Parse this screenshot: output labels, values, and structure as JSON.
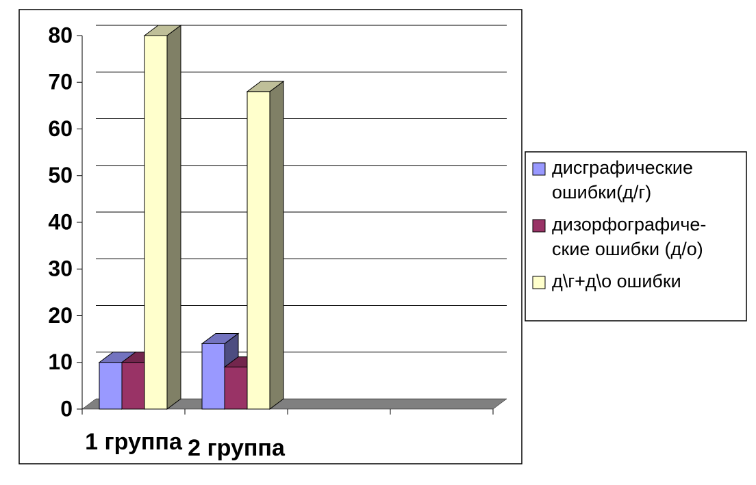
{
  "chart_data": {
    "type": "bar",
    "three_d": true,
    "categories": [
      "1 группа",
      "2 группа",
      null,
      null
    ],
    "series": [
      {
        "name": "дисграфические ошибки(д/г)",
        "color": "#9999ff",
        "values": [
          10,
          14,
          null,
          null
        ]
      },
      {
        "name": "дизорфографиче-ские ошибки (д/о)",
        "color": "#993366",
        "values": [
          10,
          9,
          null,
          null
        ]
      },
      {
        "name": "д\\г+д\\о ошибки",
        "color": "#ffffcc",
        "values": [
          80,
          68,
          null,
          null
        ]
      }
    ],
    "ylim": [
      0,
      80
    ],
    "yticks": [
      0,
      10,
      20,
      30,
      40,
      50,
      60,
      70,
      80
    ],
    "grid": true,
    "legend": "right"
  }
}
